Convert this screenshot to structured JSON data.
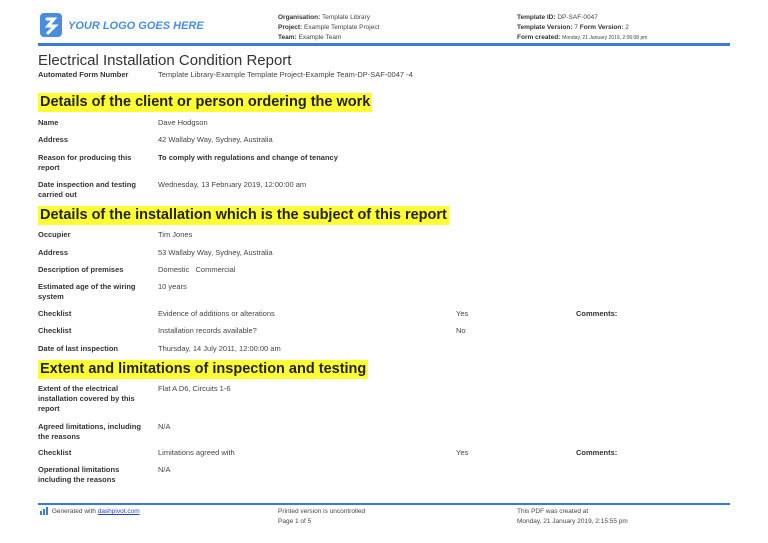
{
  "header": {
    "logo_text": "YOUR LOGO GOES HERE",
    "organisation_label": "Organisation:",
    "organisation": "Template Library",
    "project_label": "Project:",
    "project": "Example Template Project",
    "team_label": "Team:",
    "team": "Example Team",
    "template_id_label": "Template ID:",
    "template_id": "DP-SAF-0047",
    "template_version_label": "Template Version:",
    "template_version": "7",
    "form_version_label": "Form Version:",
    "form_version": "2",
    "form_created_label": "Form created:",
    "form_created": "Monday, 21 January 2019, 2:06:08 pm"
  },
  "title": "Electrical Installation Condition Report",
  "form_number": {
    "label": "Automated Form Number",
    "value": "Template Library-Example Template Project-Example Team-DP-SAF-0047   -4"
  },
  "sections": [
    {
      "heading": "Details of the client or person ordering the work",
      "rows": [
        {
          "label": "Name",
          "value": "Dave Hodgson"
        },
        {
          "label": "Address",
          "value": "42 Wallaby Way, Sydney, Australia"
        },
        {
          "label": "Reason for producing this report",
          "value": "To comply with regulations and change of tenancy"
        },
        {
          "label": "Date inspection and testing carried out",
          "value": "Wednesday, 13 February 2019, 12:00:00 am"
        }
      ]
    },
    {
      "heading": "Details of the installation which is the subject of this report",
      "rows": [
        {
          "label": "Occupier",
          "value": "Tim Jones"
        },
        {
          "label": "Address",
          "value": "53 Wallaby Way, Sydney, Australia"
        },
        {
          "label": "Description of premises",
          "value": "Domestic   Commercial"
        },
        {
          "label": "Estimated age of the wiring system",
          "value": "10 years"
        },
        {
          "label": "Checklist",
          "value": "Evidence of additions or alterations",
          "answer": "Yes",
          "comments": "Comments:"
        },
        {
          "label": "Checklist",
          "value": "Installation records available?",
          "answer": "No"
        },
        {
          "label": "Date of last inspection",
          "value": "Thursday, 14 July 2011, 12:00:00 am"
        }
      ]
    },
    {
      "heading": "Extent and limitations of inspection and testing",
      "rows": [
        {
          "label": "Extent of the electrical installation covered by this report",
          "value": "Flat A D6, Circuits 1-6"
        },
        {
          "label": "Agreed limitations, including the reasons",
          "value": "N/A"
        },
        {
          "label": "Checklist",
          "value": "Limitations agreed with",
          "answer": "Yes",
          "comments": "Comments:"
        },
        {
          "label": "Operational limitations including the reasons",
          "value": "N/A"
        }
      ]
    }
  ],
  "footer": {
    "generated": "Generated with ",
    "link": "dashpivot.com",
    "uncontrolled": "Printed version is uncontrolled",
    "page": "Page 1 of 5",
    "pdf_created": "This PDF was created at",
    "pdf_date": "Monday, 21 January 2019, 2:15:55 pm"
  },
  "colors": {
    "accent": "#3a7bd5",
    "highlight": "#ffff33"
  }
}
